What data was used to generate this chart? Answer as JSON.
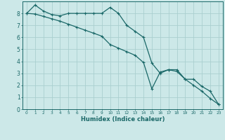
{
  "xlabel": "Humidex (Indice chaleur)",
  "ylabel": "",
  "bg_color": "#cce8e8",
  "grid_color": "#aacfcf",
  "line_color": "#1a6868",
  "xlim": [
    -0.5,
    23.5
  ],
  "ylim": [
    0,
    9
  ],
  "xticks": [
    0,
    1,
    2,
    3,
    4,
    5,
    6,
    7,
    8,
    9,
    10,
    11,
    12,
    13,
    14,
    15,
    16,
    17,
    18,
    19,
    20,
    21,
    22,
    23
  ],
  "yticks": [
    0,
    1,
    2,
    3,
    4,
    5,
    6,
    7,
    8
  ],
  "line1_x": [
    0,
    1,
    2,
    3,
    4,
    5,
    6,
    7,
    8,
    9,
    10,
    11,
    12,
    13,
    14,
    15,
    16,
    17,
    18,
    19,
    20,
    21,
    22,
    23
  ],
  "line1_y": [
    8.0,
    8.7,
    8.2,
    7.9,
    7.8,
    8.0,
    8.0,
    8.0,
    8.0,
    8.0,
    8.5,
    8.0,
    7.0,
    6.5,
    6.0,
    3.85,
    3.0,
    3.3,
    3.3,
    2.5,
    2.5,
    1.9,
    1.5,
    0.4
  ],
  "line2_x": [
    0,
    1,
    2,
    3,
    4,
    5,
    6,
    7,
    8,
    9,
    10,
    11,
    12,
    13,
    14,
    15,
    16,
    17,
    18,
    19,
    20,
    21,
    22,
    23
  ],
  "line2_y": [
    8.0,
    7.95,
    7.75,
    7.55,
    7.35,
    7.1,
    6.85,
    6.6,
    6.35,
    6.1,
    5.4,
    5.1,
    4.8,
    4.5,
    3.9,
    1.7,
    3.1,
    3.3,
    3.15,
    2.5,
    2.0,
    1.5,
    0.9,
    0.4
  ]
}
